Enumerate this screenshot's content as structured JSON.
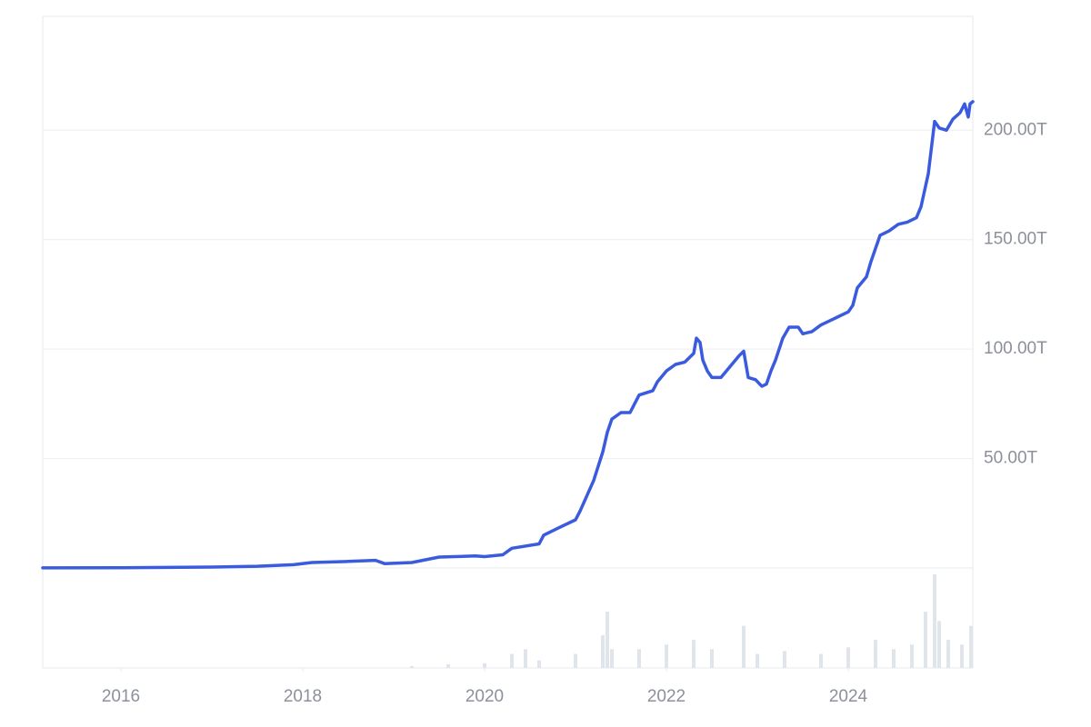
{
  "chart_data": {
    "type": "line",
    "xlim": [
      2015.14,
      2025.37
    ],
    "xticks": [
      2016,
      2018,
      2020,
      2022,
      2024
    ],
    "ylim": [
      0,
      252
    ],
    "yticks": [
      {
        "value": 50,
        "label": "50.00T"
      },
      {
        "value": 100,
        "label": "100.00T"
      },
      {
        "value": 150,
        "label": "150.00T"
      },
      {
        "value": 200,
        "label": "200.00T"
      }
    ],
    "y2lim": [
      0,
      100
    ],
    "grid": true,
    "series": [
      {
        "color": "#3a5bde",
        "x": [
          2015.14,
          2016,
          2017,
          2017.5,
          2017.9,
          2018.1,
          2018.5,
          2018.8,
          2018.9,
          2019.2,
          2019.5,
          2019.9,
          2020.0,
          2020.2,
          2020.3,
          2020.6,
          2020.65,
          2020.8,
          2021.0,
          2021.05,
          2021.2,
          2021.3,
          2021.35,
          2021.4,
          2021.5,
          2021.6,
          2021.65,
          2021.7,
          2021.85,
          2021.9,
          2022.0,
          2022.1,
          2022.2,
          2022.3,
          2022.33,
          2022.37,
          2022.4,
          2022.45,
          2022.5,
          2022.6,
          2022.7,
          2022.8,
          2022.85,
          2022.9,
          2022.98,
          2023.05,
          2023.1,
          2023.15,
          2023.2,
          2023.28,
          2023.35,
          2023.45,
          2023.5,
          2023.6,
          2023.7,
          2023.8,
          2023.9,
          2024.0,
          2024.05,
          2024.1,
          2024.2,
          2024.25,
          2024.35,
          2024.45,
          2024.55,
          2024.65,
          2024.75,
          2024.8,
          2024.88,
          2024.95,
          2025.0,
          2025.08,
          2025.15,
          2025.23,
          2025.28,
          2025.32,
          2025.34,
          2025.37
        ],
        "values": [
          0.05,
          0.1,
          0.4,
          0.8,
          1.5,
          2.5,
          3,
          3.5,
          2,
          2.5,
          5,
          5.5,
          5.2,
          6,
          9,
          11,
          15,
          18,
          22,
          26,
          40,
          53,
          62,
          68,
          71,
          71,
          75,
          79,
          81,
          85,
          90,
          93,
          94,
          98,
          105,
          103,
          95,
          90,
          87,
          87,
          92,
          97,
          99,
          87,
          86,
          83,
          84,
          90,
          95,
          105,
          110,
          110,
          107,
          108,
          111,
          113,
          115,
          117,
          120,
          128,
          133,
          140,
          152,
          154,
          157,
          158,
          160,
          165,
          180,
          204,
          201,
          200,
          205,
          208,
          212,
          206,
          212,
          213
        ]
      },
      {
        "color": "#dfe5ea",
        "axis": "y2",
        "x": [
          2019.2,
          2019.6,
          2020.0,
          2020.3,
          2020.45,
          2020.6,
          2021.0,
          2021.3,
          2021.35,
          2021.4,
          2021.7,
          2022.0,
          2022.3,
          2022.5,
          2022.85,
          2023.0,
          2023.3,
          2023.7,
          2024.0,
          2024.3,
          2024.5,
          2024.7,
          2024.85,
          2024.95,
          2025.0,
          2025.1,
          2025.25,
          2025.35
        ],
        "values": [
          2,
          4,
          5,
          15,
          20,
          8,
          15,
          35,
          60,
          20,
          20,
          25,
          30,
          20,
          45,
          15,
          18,
          15,
          22,
          30,
          20,
          25,
          60,
          100,
          50,
          30,
          25,
          45
        ]
      }
    ]
  }
}
